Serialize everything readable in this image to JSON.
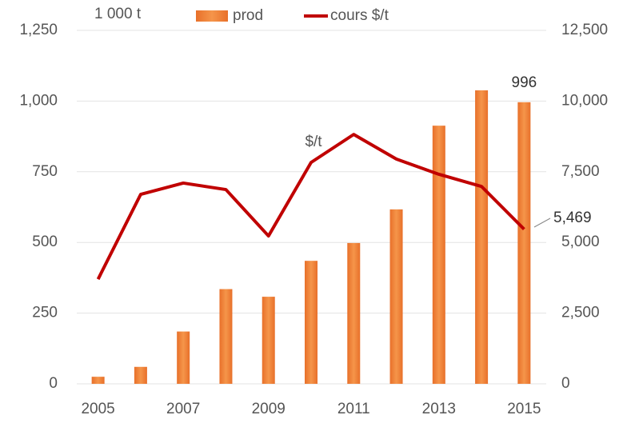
{
  "chart_data": {
    "type": "bar",
    "annotations": [
      "1 000 t",
      "$/t"
    ],
    "categories": [
      "2005",
      null,
      "2007",
      null,
      "2009",
      null,
      "2011",
      null,
      "2013",
      null,
      "2015"
    ],
    "series": [
      {
        "name": "prod",
        "color": "#f0883a",
        "values": [
          25,
          60,
          185,
          335,
          308,
          435,
          498,
          617,
          913,
          1038,
          996
        ]
      },
      {
        "name": "cours $/t",
        "color": "#c00000",
        "axis": "y2",
        "type": "line",
        "values": [
          3700,
          6700,
          7100,
          6870,
          5230,
          7830,
          8820,
          7950,
          7410,
          6980,
          5469
        ],
        "value_labels": [
          null,
          null,
          null,
          null,
          null,
          null,
          null,
          null,
          null,
          null,
          "5,469"
        ]
      }
    ],
    "ylim": [
      0,
      1250
    ],
    "yticks": [
      0,
      250,
      500,
      750,
      {
        "value": 1000,
        "label": "1,000"
      },
      {
        "value": 1250,
        "label": "1,250"
      }
    ],
    "y2lim": [
      0,
      12500
    ],
    "y2ticks": [
      0,
      {
        "value": 2500,
        "label": "2,500"
      },
      {
        "value": 5000,
        "label": "5,000"
      },
      {
        "value": 7500,
        "label": "7,500"
      },
      {
        "value": 10000,
        "label": "10,000"
      },
      {
        "value": 12500,
        "label": "12,500"
      }
    ],
    "grid": true
  }
}
